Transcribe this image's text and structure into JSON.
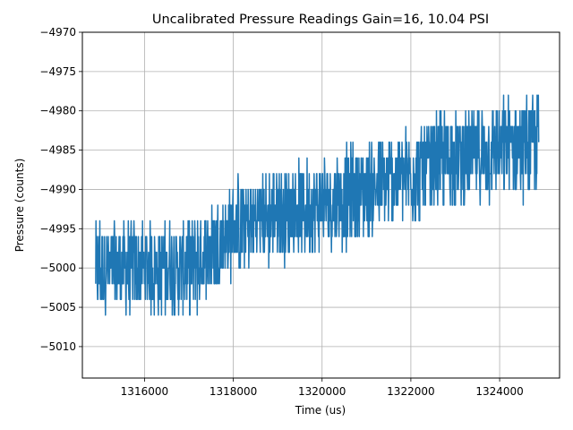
{
  "chart_data": {
    "type": "line",
    "title": "Uncalibrated Pressure Readings Gain=16, 10.04 PSI",
    "xlabel": "Time (us)",
    "ylabel": "Pressure (counts)",
    "xlim": [
      1314600,
      1325350
    ],
    "ylim": [
      -5014,
      -4970
    ],
    "x_ticks": [
      1316000,
      1318000,
      1320000,
      1322000,
      1324000
    ],
    "x_tick_labels": [
      "1316000",
      "1318000",
      "1320000",
      "1322000",
      "1324000"
    ],
    "y_ticks": [
      -4970,
      -4975,
      -4980,
      -4985,
      -4990,
      -4995,
      -5000,
      -5005,
      -5010
    ],
    "y_tick_labels": [
      "−4970",
      "−4975",
      "−4980",
      "−4985",
      "−4990",
      "−4995",
      "−5000",
      "−5005",
      "−5010"
    ],
    "grid": true,
    "series_color": "#1f77b4",
    "series": [
      {
        "x_start": 1314900,
        "x_end": 1324880,
        "trend_keypoints": [
          [
            1314900,
            -5000
          ],
          [
            1316000,
            -5000
          ],
          [
            1317000,
            -5000
          ],
          [
            1318000,
            -4995
          ],
          [
            1319000,
            -4993
          ],
          [
            1320000,
            -4992
          ],
          [
            1321000,
            -4990
          ],
          [
            1322000,
            -4988
          ],
          [
            1323000,
            -4986
          ],
          [
            1324000,
            -4985
          ],
          [
            1324880,
            -4984
          ]
        ],
        "y_min": -5012,
        "y_max": -4974,
        "noise_amplitude": 7,
        "quantization": 2
      }
    ]
  }
}
